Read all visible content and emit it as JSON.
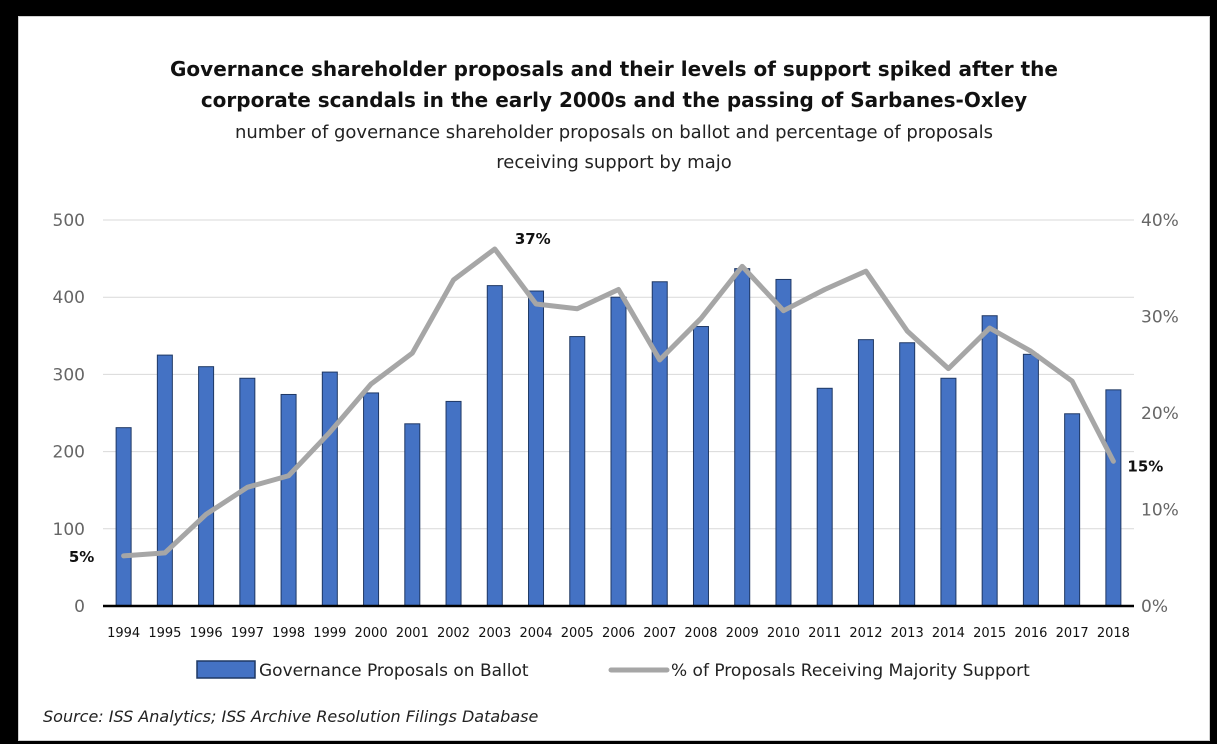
{
  "chart_data": {
    "type": "bar",
    "title_lines": [
      "Governance shareholder proposals and their levels of support spiked after the",
      "corporate scandals in the early 2000s and the passing of Sarbanes-Oxley"
    ],
    "subtitle_lines": [
      "number of governance shareholder proposals on ballot and percentage of proposals",
      "receiving support by majo"
    ],
    "categories": [
      "1994",
      "1995",
      "1996",
      "1997",
      "1998",
      "1999",
      "2000",
      "2001",
      "2002",
      "2003",
      "2004",
      "2005",
      "2006",
      "2007",
      "2008",
      "2009",
      "2010",
      "2011",
      "2012",
      "2013",
      "2014",
      "2015",
      "2016",
      "2017",
      "2018"
    ],
    "series": [
      {
        "name": "Governance Proposals on Ballot",
        "type": "bar",
        "axis": "left",
        "color": "#4472C4",
        "values": [
          231,
          325,
          310,
          295,
          274,
          303,
          276,
          236,
          265,
          415,
          408,
          349,
          400,
          420,
          362,
          437,
          423,
          282,
          345,
          341,
          295,
          376,
          326,
          249,
          280
        ]
      },
      {
        "name": "% of Proposals Receiving Majority Support",
        "type": "line",
        "axis": "right",
        "color": "#A6A6A6",
        "values": [
          5.2,
          5.5,
          9.5,
          12.3,
          13.5,
          18.0,
          23.0,
          26.2,
          33.8,
          37.0,
          31.3,
          30.8,
          32.8,
          25.5,
          29.8,
          35.2,
          30.6,
          32.8,
          34.7,
          28.5,
          24.6,
          28.8,
          26.4,
          23.3,
          15.0
        ]
      }
    ],
    "y_left": {
      "ylim": [
        0,
        500
      ],
      "ticks": [
        "0",
        "100",
        "200",
        "300",
        "400",
        "500"
      ]
    },
    "y_right": {
      "ylim": [
        0,
        40
      ],
      "ticks": [
        "0%",
        "10%",
        "20%",
        "30%",
        "40%"
      ]
    },
    "annotations": [
      {
        "text": "5%",
        "category": "1994"
      },
      {
        "text": "37%",
        "category": "2003"
      },
      {
        "text": "15%",
        "category": "2018"
      }
    ],
    "legend": {
      "placement": "bottom"
    },
    "grid": true,
    "source": "Source: ISS Analytics; ISS Archive Resolution Filings Database"
  }
}
